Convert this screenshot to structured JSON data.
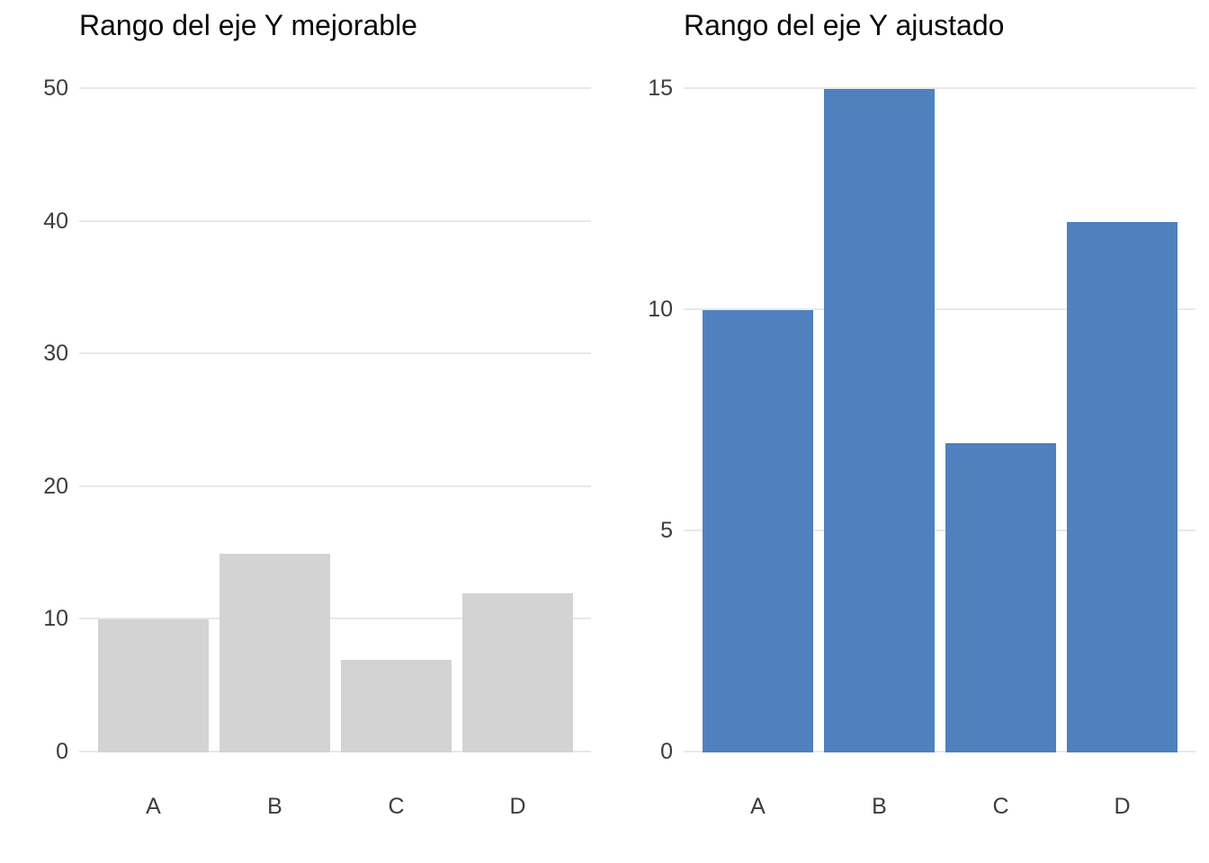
{
  "page": {
    "background": "#ffffff"
  },
  "style": {
    "grid_color": "#e8e8e8",
    "tick_label_color": "#3d3d3d",
    "title_color": "#0a0a0a"
  },
  "chart_data": [
    {
      "type": "bar",
      "title": "Rango del eje Y mejorable",
      "categories": [
        "A",
        "B",
        "C",
        "D"
      ],
      "values": [
        10,
        15,
        7,
        12
      ],
      "xlabel": "",
      "ylabel": "",
      "ylim": [
        0,
        50
      ],
      "yticks": [
        0,
        10,
        20,
        30,
        40,
        50
      ],
      "bar_color": "#d3d3d3",
      "grid": "horizontal-major-only",
      "legend": "none"
    },
    {
      "type": "bar",
      "title": "Rango del eje Y ajustado",
      "categories": [
        "A",
        "B",
        "C",
        "D"
      ],
      "values": [
        10,
        15,
        7,
        12
      ],
      "xlabel": "",
      "ylabel": "",
      "ylim": [
        0,
        15
      ],
      "yticks": [
        0,
        5,
        10,
        15
      ],
      "bar_color": "#4e81bd",
      "grid": "horizontal-major-only",
      "legend": "none"
    }
  ]
}
